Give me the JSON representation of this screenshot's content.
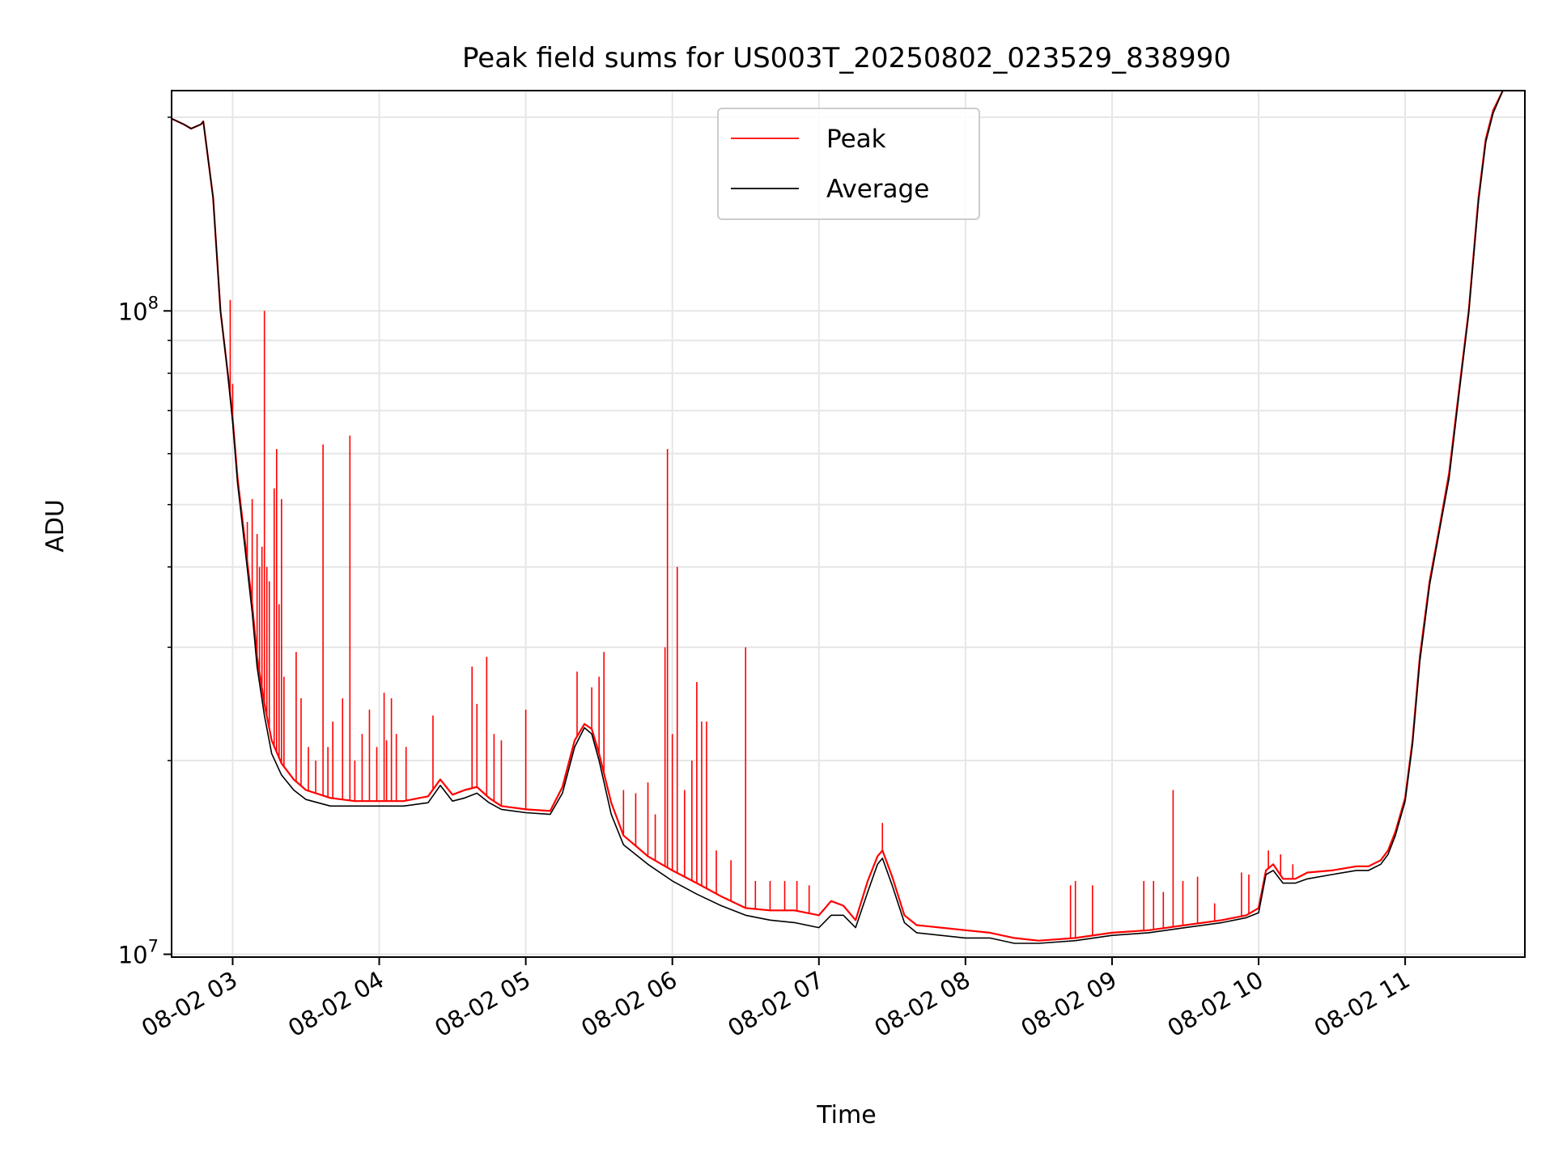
{
  "chart_data": {
    "type": "line",
    "title": "Peak field sums for US003T_20250802_023529_838990",
    "xlabel": "Time",
    "ylabel": "ADU",
    "yscale": "log",
    "ylim": [
      9900000,
      220000000
    ],
    "xlim": [
      "2025-08-02 02:35",
      "2025-08-02 11:49"
    ],
    "grid": true,
    "legend": {
      "position": "top-center"
    },
    "x_ticks": [
      {
        "t": "2025-08-02 03:00",
        "label": "08-02 03"
      },
      {
        "t": "2025-08-02 04:00",
        "label": "08-02 04"
      },
      {
        "t": "2025-08-02 05:00",
        "label": "08-02 05"
      },
      {
        "t": "2025-08-02 06:00",
        "label": "08-02 06"
      },
      {
        "t": "2025-08-02 07:00",
        "label": "08-02 07"
      },
      {
        "t": "2025-08-02 08:00",
        "label": "08-02 08"
      },
      {
        "t": "2025-08-02 09:00",
        "label": "08-02 09"
      },
      {
        "t": "2025-08-02 10:00",
        "label": "08-02 10"
      },
      {
        "t": "2025-08-02 11:00",
        "label": "08-02 11"
      }
    ],
    "y_ticks": [
      {
        "value": 10000000,
        "label": "10",
        "exp": "7"
      },
      {
        "value": 100000000,
        "label": "10",
        "exp": "8"
      }
    ],
    "y_minor_ticks": [
      20000000,
      30000000,
      40000000,
      50000000,
      60000000,
      70000000,
      80000000,
      90000000,
      200000000
    ],
    "series": [
      {
        "name": "Peak",
        "color": "#ff0000",
        "x": [
          "2025-08-02 02:35",
          "2025-08-02 02:40",
          "2025-08-02 02:43",
          "2025-08-02 02:47",
          "2025-08-02 02:48",
          "2025-08-02 02:52",
          "2025-08-02 02:55",
          "2025-08-02 02:58",
          "2025-08-02 03:00",
          "2025-08-02 03:02",
          "2025-08-02 03:05",
          "2025-08-02 03:08",
          "2025-08-02 03:10",
          "2025-08-02 03:13",
          "2025-08-02 03:16",
          "2025-08-02 03:20",
          "2025-08-02 03:25",
          "2025-08-02 03:30",
          "2025-08-02 03:40",
          "2025-08-02 03:50",
          "2025-08-02 04:00",
          "2025-08-02 04:10",
          "2025-08-02 04:20",
          "2025-08-02 04:25",
          "2025-08-02 04:30",
          "2025-08-02 04:35",
          "2025-08-02 04:40",
          "2025-08-02 04:45",
          "2025-08-02 04:50",
          "2025-08-02 05:00",
          "2025-08-02 05:10",
          "2025-08-02 05:15",
          "2025-08-02 05:20",
          "2025-08-02 05:24",
          "2025-08-02 05:27",
          "2025-08-02 05:30",
          "2025-08-02 05:35",
          "2025-08-02 05:40",
          "2025-08-02 05:50",
          "2025-08-02 06:00",
          "2025-08-02 06:10",
          "2025-08-02 06:20",
          "2025-08-02 06:30",
          "2025-08-02 06:40",
          "2025-08-02 06:50",
          "2025-08-02 07:00",
          "2025-08-02 07:05",
          "2025-08-02 07:10",
          "2025-08-02 07:15",
          "2025-08-02 07:20",
          "2025-08-02 07:24",
          "2025-08-02 07:26",
          "2025-08-02 07:30",
          "2025-08-02 07:35",
          "2025-08-02 07:40",
          "2025-08-02 07:50",
          "2025-08-02 08:00",
          "2025-08-02 08:10",
          "2025-08-02 08:20",
          "2025-08-02 08:30",
          "2025-08-02 08:45",
          "2025-08-02 09:00",
          "2025-08-02 09:15",
          "2025-08-02 09:30",
          "2025-08-02 09:45",
          "2025-08-02 09:55",
          "2025-08-02 10:00",
          "2025-08-02 10:03",
          "2025-08-02 10:06",
          "2025-08-02 10:10",
          "2025-08-02 10:15",
          "2025-08-02 10:20",
          "2025-08-02 10:30",
          "2025-08-02 10:40",
          "2025-08-02 10:45",
          "2025-08-02 10:50",
          "2025-08-02 10:53",
          "2025-08-02 10:56",
          "2025-08-02 11:00",
          "2025-08-02 11:03",
          "2025-08-02 11:06",
          "2025-08-02 11:10",
          "2025-08-02 11:14",
          "2025-08-02 11:18",
          "2025-08-02 11:22",
          "2025-08-02 11:26",
          "2025-08-02 11:30",
          "2025-08-02 11:33",
          "2025-08-02 11:36",
          "2025-08-02 11:40",
          "2025-08-02 11:49"
        ],
        "y": [
          199000000,
          195000000,
          192000000,
          195000000,
          197000000,
          150000000,
          100000000,
          80000000,
          68000000,
          55000000,
          44000000,
          35000000,
          29000000,
          24500000,
          21500000,
          19800000,
          18700000,
          18000000,
          17500000,
          17300000,
          17300000,
          17300000,
          17600000,
          18700000,
          17700000,
          18000000,
          18200000,
          17500000,
          17000000,
          16800000,
          16700000,
          18200000,
          21500000,
          22800000,
          22400000,
          20500000,
          17200000,
          15300000,
          14200000,
          13500000,
          12900000,
          12300000,
          11800000,
          11700000,
          11700000,
          11500000,
          12100000,
          11900000,
          11300000,
          13000000,
          14200000,
          14500000,
          13200000,
          11500000,
          11100000,
          11000000,
          10900000,
          10800000,
          10600000,
          10500000,
          10600000,
          10800000,
          10900000,
          11100000,
          11300000,
          11500000,
          11800000,
          13500000,
          13800000,
          13100000,
          13100000,
          13400000,
          13500000,
          13700000,
          13700000,
          14000000,
          14500000,
          15500000,
          17500000,
          21500000,
          29000000,
          38000000,
          46000000,
          56000000,
          75000000,
          100000000,
          150000000,
          185000000,
          205000000,
          220000000,
          220000000
        ]
      },
      {
        "name": "Average",
        "color": "#000000",
        "x": [
          "2025-08-02 02:35",
          "2025-08-02 02:40",
          "2025-08-02 02:43",
          "2025-08-02 02:47",
          "2025-08-02 02:48",
          "2025-08-02 02:52",
          "2025-08-02 02:55",
          "2025-08-02 02:58",
          "2025-08-02 03:00",
          "2025-08-02 03:02",
          "2025-08-02 03:05",
          "2025-08-02 03:08",
          "2025-08-02 03:10",
          "2025-08-02 03:13",
          "2025-08-02 03:16",
          "2025-08-02 03:20",
          "2025-08-02 03:25",
          "2025-08-02 03:30",
          "2025-08-02 03:40",
          "2025-08-02 03:50",
          "2025-08-02 04:00",
          "2025-08-02 04:10",
          "2025-08-02 04:20",
          "2025-08-02 04:25",
          "2025-08-02 04:30",
          "2025-08-02 04:35",
          "2025-08-02 04:40",
          "2025-08-02 04:45",
          "2025-08-02 04:50",
          "2025-08-02 05:00",
          "2025-08-02 05:10",
          "2025-08-02 05:15",
          "2025-08-02 05:20",
          "2025-08-02 05:24",
          "2025-08-02 05:27",
          "2025-08-02 05:30",
          "2025-08-02 05:35",
          "2025-08-02 05:40",
          "2025-08-02 05:50",
          "2025-08-02 06:00",
          "2025-08-02 06:10",
          "2025-08-02 06:20",
          "2025-08-02 06:30",
          "2025-08-02 06:40",
          "2025-08-02 06:50",
          "2025-08-02 07:00",
          "2025-08-02 07:05",
          "2025-08-02 07:10",
          "2025-08-02 07:15",
          "2025-08-02 07:20",
          "2025-08-02 07:24",
          "2025-08-02 07:26",
          "2025-08-02 07:30",
          "2025-08-02 07:35",
          "2025-08-02 07:40",
          "2025-08-02 07:50",
          "2025-08-02 08:00",
          "2025-08-02 08:10",
          "2025-08-02 08:20",
          "2025-08-02 08:30",
          "2025-08-02 08:45",
          "2025-08-02 09:00",
          "2025-08-02 09:15",
          "2025-08-02 09:30",
          "2025-08-02 09:45",
          "2025-08-02 09:55",
          "2025-08-02 10:00",
          "2025-08-02 10:03",
          "2025-08-02 10:06",
          "2025-08-02 10:10",
          "2025-08-02 10:15",
          "2025-08-02 10:20",
          "2025-08-02 10:30",
          "2025-08-02 10:40",
          "2025-08-02 10:45",
          "2025-08-02 10:50",
          "2025-08-02 10:53",
          "2025-08-02 10:56",
          "2025-08-02 11:00",
          "2025-08-02 11:03",
          "2025-08-02 11:06",
          "2025-08-02 11:10",
          "2025-08-02 11:14",
          "2025-08-02 11:18",
          "2025-08-02 11:22",
          "2025-08-02 11:26",
          "2025-08-02 11:30",
          "2025-08-02 11:33",
          "2025-08-02 11:36",
          "2025-08-02 11:40",
          "2025-08-02 11:49"
        ],
        "y": [
          199000000,
          195000000,
          192000000,
          195000000,
          197000000,
          150000000,
          100000000,
          80000000,
          67000000,
          54000000,
          43000000,
          34000000,
          28000000,
          23500000,
          20500000,
          19000000,
          18000000,
          17400000,
          17000000,
          17000000,
          17000000,
          17000000,
          17200000,
          18300000,
          17300000,
          17500000,
          17800000,
          17200000,
          16800000,
          16600000,
          16500000,
          17800000,
          21000000,
          22500000,
          22000000,
          20000000,
          16500000,
          14800000,
          13800000,
          13000000,
          12400000,
          11900000,
          11500000,
          11300000,
          11200000,
          11000000,
          11500000,
          11500000,
          11000000,
          12500000,
          13800000,
          14100000,
          12800000,
          11200000,
          10800000,
          10700000,
          10600000,
          10600000,
          10400000,
          10400000,
          10500000,
          10700000,
          10800000,
          11000000,
          11200000,
          11400000,
          11600000,
          13300000,
          13500000,
          12900000,
          12900000,
          13100000,
          13300000,
          13500000,
          13500000,
          13800000,
          14300000,
          15300000,
          17300000,
          21200000,
          28500000,
          37500000,
          45500000,
          55000000,
          74000000,
          99000000,
          148000000,
          183000000,
          203000000,
          220000000,
          220000000
        ]
      }
    ],
    "spikes": {
      "series": "Peak",
      "color": "#ff0000",
      "points": [
        [
          "2025-08-02 02:59",
          104000000
        ],
        [
          "2025-08-02 03:00",
          77000000
        ],
        [
          "2025-08-02 03:06",
          47000000
        ],
        [
          "2025-08-02 03:08",
          51000000
        ],
        [
          "2025-08-02 03:10",
          45000000
        ],
        [
          "2025-08-02 03:11",
          40000000
        ],
        [
          "2025-08-02 03:12",
          43000000
        ],
        [
          "2025-08-02 03:13",
          100000000
        ],
        [
          "2025-08-02 03:14",
          40000000
        ],
        [
          "2025-08-02 03:15",
          38000000
        ],
        [
          "2025-08-02 03:17",
          53000000
        ],
        [
          "2025-08-02 03:18",
          61000000
        ],
        [
          "2025-08-02 03:19",
          35000000
        ],
        [
          "2025-08-02 03:20",
          51000000
        ],
        [
          "2025-08-02 03:21",
          27000000
        ],
        [
          "2025-08-02 03:26",
          29500000
        ],
        [
          "2025-08-02 03:28",
          25000000
        ],
        [
          "2025-08-02 03:31",
          21000000
        ],
        [
          "2025-08-02 03:34",
          20000000
        ],
        [
          "2025-08-02 03:37",
          62000000
        ],
        [
          "2025-08-02 03:39",
          21000000
        ],
        [
          "2025-08-02 03:41",
          23000000
        ],
        [
          "2025-08-02 03:45",
          25000000
        ],
        [
          "2025-08-02 03:48",
          64000000
        ],
        [
          "2025-08-02 03:50",
          20000000
        ],
        [
          "2025-08-02 03:53",
          22000000
        ],
        [
          "2025-08-02 03:56",
          24000000
        ],
        [
          "2025-08-02 03:59",
          21000000
        ],
        [
          "2025-08-02 04:02",
          25500000
        ],
        [
          "2025-08-02 04:03",
          21500000
        ],
        [
          "2025-08-02 04:05",
          25000000
        ],
        [
          "2025-08-02 04:07",
          22000000
        ],
        [
          "2025-08-02 04:11",
          21000000
        ],
        [
          "2025-08-02 04:22",
          23500000
        ],
        [
          "2025-08-02 04:38",
          28000000
        ],
        [
          "2025-08-02 04:40",
          24500000
        ],
        [
          "2025-08-02 04:44",
          29000000
        ],
        [
          "2025-08-02 04:47",
          22000000
        ],
        [
          "2025-08-02 04:50",
          21500000
        ],
        [
          "2025-08-02 05:00",
          24000000
        ],
        [
          "2025-08-02 05:21",
          27500000
        ],
        [
          "2025-08-02 05:27",
          26000000
        ],
        [
          "2025-08-02 05:30",
          27000000
        ],
        [
          "2025-08-02 05:32",
          29500000
        ],
        [
          "2025-08-02 05:40",
          18000000
        ],
        [
          "2025-08-02 05:45",
          17800000
        ],
        [
          "2025-08-02 05:50",
          18500000
        ],
        [
          "2025-08-02 05:53",
          16500000
        ],
        [
          "2025-08-02 05:57",
          30000000
        ],
        [
          "2025-08-02 05:58",
          61000000
        ],
        [
          "2025-08-02 06:00",
          22000000
        ],
        [
          "2025-08-02 06:02",
          40000000
        ],
        [
          "2025-08-02 06:05",
          18000000
        ],
        [
          "2025-08-02 06:08",
          20000000
        ],
        [
          "2025-08-02 06:10",
          26500000
        ],
        [
          "2025-08-02 06:12",
          23000000
        ],
        [
          "2025-08-02 06:14",
          23000000
        ],
        [
          "2025-08-02 06:18",
          14500000
        ],
        [
          "2025-08-02 06:24",
          14000000
        ],
        [
          "2025-08-02 06:30",
          30000000
        ],
        [
          "2025-08-02 06:34",
          13000000
        ],
        [
          "2025-08-02 06:40",
          13000000
        ],
        [
          "2025-08-02 06:46",
          13000000
        ],
        [
          "2025-08-02 06:51",
          13000000
        ],
        [
          "2025-08-02 06:56",
          12800000
        ],
        [
          "2025-08-02 07:26",
          16000000
        ],
        [
          "2025-08-02 08:43",
          12800000
        ],
        [
          "2025-08-02 08:45",
          13000000
        ],
        [
          "2025-08-02 08:52",
          12800000
        ],
        [
          "2025-08-02 09:13",
          13000000
        ],
        [
          "2025-08-02 09:17",
          13000000
        ],
        [
          "2025-08-02 09:21",
          12500000
        ],
        [
          "2025-08-02 09:25",
          18000000
        ],
        [
          "2025-08-02 09:29",
          13000000
        ],
        [
          "2025-08-02 09:35",
          13200000
        ],
        [
          "2025-08-02 09:42",
          12000000
        ],
        [
          "2025-08-02 09:53",
          13400000
        ],
        [
          "2025-08-02 09:56",
          13300000
        ],
        [
          "2025-08-02 10:04",
          14500000
        ],
        [
          "2025-08-02 10:09",
          14300000
        ],
        [
          "2025-08-02 10:14",
          13800000
        ],
        [
          "2025-08-02 10:30",
          13500000
        ]
      ]
    }
  }
}
